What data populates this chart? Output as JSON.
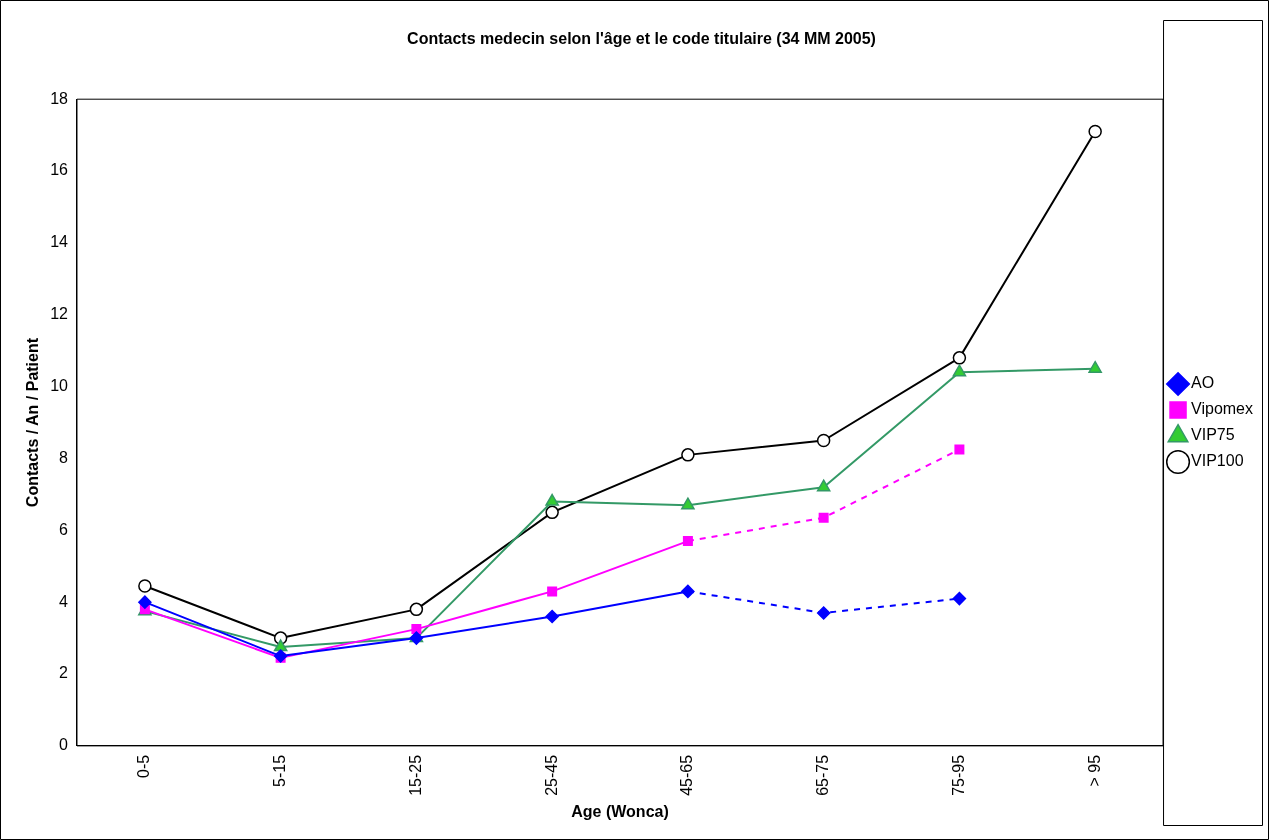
{
  "chart_data": {
    "type": "line",
    "title": "Contacts medecin selon l'âge et le code titulaire (34 MM 2005)",
    "xlabel": "Age (Wonca)",
    "ylabel": "Contacts / An / Patient",
    "categories": [
      "0-5",
      "5-15",
      "15-25",
      "25-45",
      "45-65",
      "65-75",
      "75-95",
      "> 95"
    ],
    "ylim": [
      0,
      18
    ],
    "yticks": [
      0,
      2,
      4,
      6,
      8,
      10,
      12,
      14,
      16,
      18
    ],
    "grid": false,
    "legend": "right",
    "series": [
      {
        "name": "AO",
        "color": "#0000ff",
        "marker": "diamond",
        "line_style": [
          "solid",
          "solid",
          "solid",
          "solid",
          "dashed",
          "dashed"
        ],
        "values": [
          4.0,
          2.5,
          3.0,
          3.6,
          4.3,
          3.7,
          4.1,
          null
        ]
      },
      {
        "name": "Vipomex",
        "color": "#ff00ff",
        "marker": "square",
        "line_style": [
          "solid",
          "solid",
          "solid",
          "solid",
          "dashed",
          "dashed"
        ],
        "values": [
          3.8,
          2.45,
          3.25,
          4.3,
          5.7,
          6.35,
          8.25,
          null
        ]
      },
      {
        "name": "VIP75",
        "color": "#339966",
        "marker": "triangle",
        "values": [
          3.75,
          2.75,
          3.0,
          6.8,
          6.7,
          7.2,
          10.4,
          10.5
        ]
      },
      {
        "name": "VIP100",
        "color": "#000000",
        "marker": "circle",
        "values": [
          4.45,
          3.0,
          3.8,
          6.5,
          8.1,
          8.5,
          10.8,
          17.1
        ]
      }
    ]
  }
}
